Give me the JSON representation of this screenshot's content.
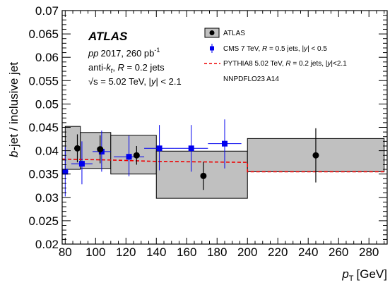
{
  "chart_data": {
    "type": "scatter",
    "xlabel_main": "p",
    "xlabel_sub": "T",
    "xlabel_unit": "[GeV]",
    "ylabel_italic": "b",
    "ylabel_rest": "-jet / inclusive jet",
    "xlim": [
      78,
      292
    ],
    "ylim": [
      0.02,
      0.07
    ],
    "x_ticks": [
      80,
      100,
      120,
      140,
      160,
      180,
      200,
      220,
      240,
      260,
      280
    ],
    "x_tick_labels": [
      "80",
      "100",
      "120",
      "140",
      "160",
      "180",
      "200",
      "220",
      "240",
      "260",
      "280"
    ],
    "y_ticks": [
      0.02,
      0.025,
      0.03,
      0.035,
      0.04,
      0.045,
      0.05,
      0.055,
      0.06,
      0.065,
      0.07
    ],
    "y_tick_labels": [
      "0.02",
      "0.025",
      "0.03",
      "0.035",
      "0.04",
      "0.045",
      "0.05",
      "0.055",
      "0.06",
      "0.065",
      "0.07"
    ],
    "annotations": {
      "experiment": "ATLAS",
      "line1_italic": "pp",
      "line1_rest": "2017, 260 pb",
      "line1_sup": "-1",
      "line2_prefix": "anti-",
      "line2_k": "k",
      "line2_sub": "t",
      "line2_mid": ", ",
      "line2_R": "R",
      "line2_rest": " = 0.2 jets",
      "line3_sqrt": "√s = 5.02 TeV, |",
      "line3_y": "y",
      "line3_rest": "| < 2.1"
    },
    "legend": {
      "placement": "top-right",
      "atlas_label": "ATLAS",
      "cms_pre": "CMS 7 TeV, ",
      "cms_R": "R",
      "cms_mid": " = 0.5 jets, |",
      "cms_y": "y",
      "cms_post": "| < 0.5",
      "pythia_pre": "PYTHIA8 5.02 TeV, ",
      "pythia_R": "R",
      "pythia_mid": " = 0.2 jets, |",
      "pythia_y": "y",
      "pythia_post": "|<2.1",
      "pythia_tune": "NNPDFLO23 A14"
    },
    "atlas": [
      {
        "x": 88,
        "y": 0.0405,
        "xlo": 80,
        "xhi": 90,
        "stat": 0.003,
        "syslo": 0.036,
        "syshi": 0.0452
      },
      {
        "x": 103,
        "y": 0.0403,
        "xlo": 90,
        "xhi": 110,
        "stat": 0.003,
        "syslo": 0.0362,
        "syshi": 0.0439
      },
      {
        "x": 127,
        "y": 0.039,
        "xlo": 110,
        "xhi": 140,
        "stat": 0.002,
        "syslo": 0.035,
        "syshi": 0.0433
      },
      {
        "x": 171,
        "y": 0.0346,
        "xlo": 140,
        "xhi": 200,
        "stat": 0.003,
        "syslo": 0.0298,
        "syshi": 0.0399
      },
      {
        "x": 245,
        "y": 0.039,
        "xlo": 200,
        "xhi": 290,
        "stat": 0.0058,
        "syslo": 0.0355,
        "syshi": 0.0426
      }
    ],
    "cms": [
      {
        "x": 80,
        "y": 0.0355,
        "xlo": 78,
        "xhi": 82,
        "ylo": 0.0302,
        "yhi": 0.0408
      },
      {
        "x": 91,
        "y": 0.0372,
        "xlo": 84,
        "xhi": 98,
        "ylo": 0.0328,
        "yhi": 0.042
      },
      {
        "x": 104,
        "y": 0.0398,
        "xlo": 98,
        "xhi": 110,
        "ylo": 0.0355,
        "yhi": 0.0443
      },
      {
        "x": 122,
        "y": 0.0387,
        "xlo": 112,
        "xhi": 132,
        "ylo": 0.0345,
        "yhi": 0.0432
      },
      {
        "x": 142,
        "y": 0.0405,
        "xlo": 132,
        "xhi": 152,
        "ylo": 0.0358,
        "yhi": 0.0455
      },
      {
        "x": 163,
        "y": 0.0405,
        "xlo": 152,
        "xhi": 174,
        "ylo": 0.0355,
        "yhi": 0.0455
      },
      {
        "x": 185,
        "y": 0.0415,
        "xlo": 174,
        "xhi": 196,
        "ylo": 0.0362,
        "yhi": 0.0467
      }
    ],
    "pythia": [
      {
        "x": 78,
        "y": 0.0382
      },
      {
        "x": 110,
        "y": 0.038
      },
      {
        "x": 140,
        "y": 0.0377
      },
      {
        "x": 200,
        "y": 0.0375
      },
      {
        "x": 200,
        "y": 0.0355
      },
      {
        "x": 290,
        "y": 0.0355
      }
    ],
    "colors": {
      "band_fill": "#c0c0c0",
      "band_stroke": "#000000",
      "atlas": "#000000",
      "cms": "#0000ee",
      "pythia": "#ee0000"
    }
  }
}
